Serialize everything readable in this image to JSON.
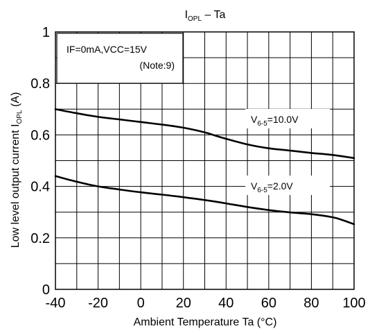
{
  "chart_data": {
    "type": "line",
    "title": {
      "main": "I",
      "sub": "OPL",
      "rest": " – Ta"
    },
    "xlabel": "Ambient Temperature Ta (°C)",
    "ylabel": {
      "main": "Low level output current   I",
      "sub": "OPL",
      "rest": "   (A)"
    },
    "xlim": [
      -40,
      100
    ],
    "ylim": [
      0,
      1
    ],
    "x_ticks": [
      -40,
      -20,
      0,
      20,
      40,
      60,
      80,
      100
    ],
    "y_ticks": [
      {
        "value": 0,
        "label": "0"
      },
      {
        "value": 0.2,
        "label": "0.2"
      },
      {
        "value": 0.4,
        "label": "0.4"
      },
      {
        "value": 0.6,
        "label": "0.6"
      },
      {
        "value": 0.8,
        "label": "0.8"
      },
      {
        "value": 1,
        "label": "1"
      }
    ],
    "grid": true,
    "condition_box": {
      "line1": "IF=0mA,VCC=15V",
      "line2": "(Note:9)"
    },
    "series": [
      {
        "name": {
          "main": "V",
          "sub": "6-5",
          "rest": "=10.0V"
        },
        "x": [
          -40,
          -30,
          -20,
          -10,
          0,
          10,
          20,
          30,
          35,
          40,
          50,
          60,
          70,
          80,
          90,
          100
        ],
        "y": [
          0.7,
          0.684,
          0.67,
          0.66,
          0.65,
          0.64,
          0.628,
          0.61,
          0.597,
          0.585,
          0.563,
          0.548,
          0.539,
          0.53,
          0.522,
          0.51
        ]
      },
      {
        "name": {
          "main": "V",
          "sub": "6-5",
          "rest": "=2.0V"
        },
        "x": [
          -40,
          -30,
          -20,
          -10,
          0,
          10,
          20,
          30,
          40,
          50,
          60,
          70,
          80,
          90,
          95,
          100
        ],
        "y": [
          0.44,
          0.418,
          0.4,
          0.388,
          0.377,
          0.368,
          0.358,
          0.347,
          0.334,
          0.32,
          0.308,
          0.299,
          0.292,
          0.28,
          0.268,
          0.253
        ]
      }
    ]
  }
}
